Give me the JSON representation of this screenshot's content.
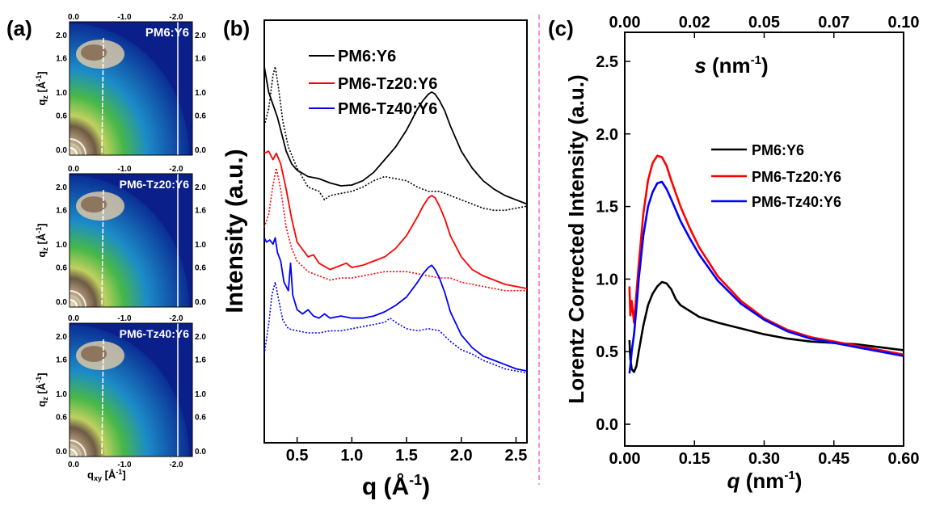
{
  "panels": {
    "a": {
      "label": "(a)",
      "x_axis_label": "q",
      "x_axis_sub": "xy",
      "x_axis_unit": " [Å",
      "x_axis_unit_sup": "-1",
      "x_axis_unit_end": "]",
      "y_axis_label": "q",
      "y_axis_sub": "z",
      "y_axis_unit": " [Å",
      "y_axis_unit_sup": "-1",
      "y_axis_unit_end": "]",
      "x_ticks": [
        "0.0",
        "-1.0",
        "-2.0"
      ],
      "y_ticks": [
        "0.0",
        "0.6",
        "1.0",
        "1.6",
        "2.0"
      ],
      "patterns": [
        {
          "name": "PM6:Y6"
        },
        {
          "name": "PM6-Tz20:Y6"
        },
        {
          "name": "PM6-Tz40:Y6"
        }
      ]
    },
    "b": {
      "label": "(b)",
      "xlabel": "q (Å",
      "xlabel_sup": "-1",
      "xlabel_end": ")",
      "ylabel": "Intensity (a.u.)",
      "x_ticks": [
        "0.5",
        "1.0",
        "1.5",
        "2.0",
        "2.5"
      ],
      "legend": [
        "PM6:Y6",
        "PM6-Tz20:Y6",
        "PM6-Tz40:Y6"
      ]
    },
    "c": {
      "label": "(c)",
      "xlabel": "q",
      "xlabel_unit": " (nm",
      "xlabel_sup": "-1",
      "xlabel_end": ")",
      "top_label": "s",
      "top_label_unit": " (nm",
      "top_label_sup": "-1",
      "top_label_end": ")",
      "ylabel": "Lorentz Corrected Intensity (a.u.)",
      "x_ticks": [
        "0.00",
        "0.15",
        "0.30",
        "0.45",
        "0.60"
      ],
      "y_ticks": [
        "0.0",
        "0.5",
        "1.0",
        "1.5",
        "2.0",
        "2.5"
      ],
      "top_ticks": [
        "0.00",
        "0.02",
        "0.05",
        "0.07",
        "0.10"
      ],
      "legend": [
        "PM6:Y6",
        "PM6-Tz20:Y6",
        "PM6-Tz40:Y6"
      ]
    }
  },
  "colors": {
    "PM6:Y6": "#000000",
    "PM6-Tz20:Y6": "#ff0000",
    "PM6-Tz40:Y6": "#0000ff",
    "divider": "#ff66cc"
  },
  "chart_data": [
    {
      "type": "line",
      "panel": "b",
      "xlim": [
        0.2,
        2.6
      ],
      "ylim": [
        0,
        10
      ],
      "series": [
        {
          "name": "PM6:Y6",
          "style": "solid",
          "x": [
            0.2,
            0.24,
            0.28,
            0.32,
            0.36,
            0.4,
            0.45,
            0.5,
            0.6,
            0.7,
            0.8,
            0.9,
            1.0,
            1.1,
            1.2,
            1.3,
            1.4,
            1.5,
            1.6,
            1.65,
            1.7,
            1.73,
            1.76,
            1.8,
            1.85,
            1.9,
            2.0,
            2.1,
            2.2,
            2.3,
            2.4,
            2.5,
            2.6
          ],
          "y": [
            8.9,
            8.3,
            8.0,
            7.7,
            7.3,
            6.9,
            6.6,
            6.45,
            6.3,
            6.25,
            6.15,
            6.08,
            6.1,
            6.2,
            6.4,
            6.7,
            7.0,
            7.4,
            7.9,
            8.1,
            8.25,
            8.3,
            8.25,
            8.1,
            7.85,
            7.5,
            6.9,
            6.5,
            6.2,
            6.0,
            5.85,
            5.75,
            5.65
          ]
        },
        {
          "name": "PM6:Y6",
          "style": "dotted",
          "x": [
            0.2,
            0.24,
            0.28,
            0.3,
            0.33,
            0.37,
            0.42,
            0.5,
            0.6,
            0.7,
            0.75,
            0.8,
            0.9,
            1.0,
            1.1,
            1.2,
            1.3,
            1.4,
            1.5,
            1.6,
            1.7,
            1.8,
            1.9,
            2.0,
            2.1,
            2.2,
            2.3,
            2.4,
            2.5,
            2.6
          ],
          "y": [
            7.5,
            7.9,
            8.7,
            8.9,
            8.4,
            7.6,
            7.0,
            6.5,
            6.05,
            5.95,
            5.75,
            5.85,
            5.9,
            5.95,
            6.05,
            6.2,
            6.3,
            6.25,
            6.2,
            6.05,
            5.95,
            5.95,
            5.85,
            5.75,
            5.65,
            5.55,
            5.5,
            5.5,
            5.55,
            5.6
          ]
        },
        {
          "name": "PM6-Tz20:Y6",
          "style": "solid",
          "x": [
            0.2,
            0.24,
            0.28,
            0.31,
            0.35,
            0.4,
            0.45,
            0.5,
            0.6,
            0.65,
            0.7,
            0.8,
            0.9,
            0.95,
            1.0,
            1.1,
            1.2,
            1.3,
            1.4,
            1.5,
            1.6,
            1.65,
            1.7,
            1.73,
            1.76,
            1.8,
            1.85,
            1.9,
            2.0,
            2.1,
            2.2,
            2.3,
            2.4,
            2.5,
            2.6
          ],
          "y": [
            6.85,
            6.9,
            6.7,
            6.85,
            6.6,
            6.0,
            5.3,
            4.75,
            4.4,
            4.45,
            4.25,
            4.1,
            4.2,
            4.25,
            4.15,
            4.2,
            4.3,
            4.4,
            4.6,
            4.9,
            5.35,
            5.6,
            5.8,
            5.85,
            5.8,
            5.6,
            5.3,
            4.9,
            4.4,
            4.1,
            3.95,
            3.85,
            3.75,
            3.7,
            3.65
          ]
        },
        {
          "name": "PM6-Tz20:Y6",
          "style": "dotted",
          "x": [
            0.2,
            0.24,
            0.28,
            0.31,
            0.35,
            0.4,
            0.45,
            0.5,
            0.6,
            0.7,
            0.8,
            0.9,
            1.0,
            1.1,
            1.2,
            1.3,
            1.4,
            1.5,
            1.6,
            1.7,
            1.8,
            1.9,
            2.0,
            2.1,
            2.2,
            2.3,
            2.4,
            2.5,
            2.6
          ],
          "y": [
            5.1,
            5.4,
            6.1,
            6.5,
            6.0,
            5.1,
            4.6,
            4.3,
            4.05,
            3.95,
            3.85,
            3.9,
            3.9,
            3.95,
            4.0,
            4.05,
            4.05,
            4.05,
            4.0,
            3.95,
            3.9,
            3.9,
            3.8,
            3.75,
            3.7,
            3.65,
            3.6,
            3.6,
            3.6
          ]
        },
        {
          "name": "PM6-Tz40:Y6",
          "style": "solid",
          "x": [
            0.2,
            0.22,
            0.25,
            0.28,
            0.3,
            0.32,
            0.35,
            0.38,
            0.42,
            0.44,
            0.46,
            0.5,
            0.55,
            0.6,
            0.65,
            0.7,
            0.75,
            0.8,
            0.9,
            1.0,
            1.1,
            1.2,
            1.3,
            1.4,
            1.5,
            1.6,
            1.65,
            1.7,
            1.73,
            1.76,
            1.8,
            1.85,
            1.9,
            2.0,
            2.1,
            2.2,
            2.3,
            2.4,
            2.5,
            2.6
          ],
          "y": [
            4.85,
            4.75,
            4.8,
            4.7,
            4.85,
            4.5,
            4.3,
            3.8,
            3.6,
            4.25,
            3.5,
            3.15,
            3.05,
            3.15,
            3.0,
            2.95,
            3.05,
            2.95,
            3.0,
            2.95,
            2.95,
            3.0,
            3.1,
            3.25,
            3.45,
            3.8,
            4.0,
            4.15,
            4.2,
            4.1,
            3.9,
            3.55,
            3.1,
            2.55,
            2.25,
            2.05,
            1.95,
            1.85,
            1.75,
            1.7
          ]
        },
        {
          "name": "PM6-Tz40:Y6",
          "style": "dotted",
          "x": [
            0.2,
            0.24,
            0.27,
            0.3,
            0.33,
            0.37,
            0.42,
            0.5,
            0.6,
            0.7,
            0.8,
            0.9,
            1.0,
            1.1,
            1.2,
            1.3,
            1.35,
            1.4,
            1.5,
            1.6,
            1.7,
            1.8,
            1.9,
            2.0,
            2.1,
            2.2,
            2.3,
            2.4,
            2.5,
            2.6
          ],
          "y": [
            2.1,
            2.8,
            3.5,
            3.8,
            3.4,
            2.9,
            2.7,
            2.65,
            2.6,
            2.6,
            2.65,
            2.65,
            2.7,
            2.75,
            2.8,
            2.85,
            2.95,
            2.85,
            2.7,
            2.65,
            2.7,
            2.65,
            2.4,
            2.2,
            2.1,
            1.95,
            1.85,
            1.75,
            1.7,
            1.65
          ]
        }
      ]
    },
    {
      "type": "line",
      "panel": "c",
      "xlim": [
        0.0,
        0.6
      ],
      "ylim": [
        -0.15,
        2.7
      ],
      "top_xlim": [
        0.0,
        0.1
      ],
      "series": [
        {
          "name": "PM6:Y6",
          "x": [
            0.01,
            0.012,
            0.015,
            0.02,
            0.025,
            0.03,
            0.04,
            0.05,
            0.06,
            0.07,
            0.08,
            0.09,
            0.1,
            0.11,
            0.12,
            0.14,
            0.16,
            0.18,
            0.2,
            0.25,
            0.3,
            0.35,
            0.4,
            0.45,
            0.5,
            0.55,
            0.6
          ],
          "y": [
            0.58,
            0.45,
            0.38,
            0.36,
            0.4,
            0.5,
            0.68,
            0.82,
            0.9,
            0.95,
            0.98,
            0.97,
            0.93,
            0.86,
            0.82,
            0.78,
            0.74,
            0.72,
            0.7,
            0.66,
            0.62,
            0.59,
            0.57,
            0.56,
            0.55,
            0.53,
            0.51
          ]
        },
        {
          "name": "PM6-Tz20:Y6",
          "x": [
            0.01,
            0.012,
            0.015,
            0.02,
            0.025,
            0.03,
            0.04,
            0.05,
            0.06,
            0.07,
            0.08,
            0.09,
            0.1,
            0.12,
            0.14,
            0.16,
            0.18,
            0.2,
            0.25,
            0.3,
            0.35,
            0.4,
            0.45,
            0.5,
            0.55,
            0.6
          ],
          "y": [
            0.95,
            0.75,
            0.85,
            0.7,
            0.9,
            1.1,
            1.45,
            1.68,
            1.8,
            1.85,
            1.84,
            1.78,
            1.68,
            1.5,
            1.35,
            1.22,
            1.12,
            1.02,
            0.85,
            0.73,
            0.65,
            0.6,
            0.57,
            0.54,
            0.51,
            0.48
          ]
        },
        {
          "name": "PM6-Tz40:Y6",
          "x": [
            0.01,
            0.012,
            0.015,
            0.02,
            0.025,
            0.03,
            0.04,
            0.05,
            0.06,
            0.07,
            0.08,
            0.09,
            0.1,
            0.12,
            0.14,
            0.16,
            0.18,
            0.2,
            0.25,
            0.3,
            0.35,
            0.4,
            0.45,
            0.5,
            0.55,
            0.6
          ],
          "y": [
            0.35,
            0.4,
            0.5,
            0.62,
            0.8,
            1.0,
            1.3,
            1.5,
            1.6,
            1.66,
            1.67,
            1.62,
            1.55,
            1.4,
            1.28,
            1.17,
            1.08,
            0.99,
            0.83,
            0.72,
            0.64,
            0.59,
            0.56,
            0.53,
            0.5,
            0.47
          ]
        }
      ]
    }
  ]
}
